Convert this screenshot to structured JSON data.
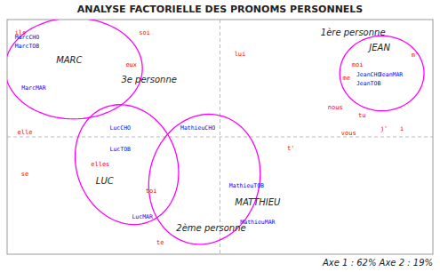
{
  "chart_data": {
    "type": "scatter",
    "title": "ANALYSE FACTORIELLE DES PRONOMS PERSONNELS",
    "xlabel": "Axe 1 : 62%    Axe 2 : 19%",
    "xlim": [
      -4.8,
      4.8
    ],
    "ylim": [
      -3.6,
      3.6
    ],
    "xticks": [
      0
    ],
    "yticks": [
      0
    ],
    "grid": true,
    "tick_labels": false,
    "series": [
      {
        "color": "red",
        "marker": "text",
        "labels": [
          "ils",
          "soi",
          "eux",
          "lui",
          "elle",
          "se",
          "elles",
          "toi",
          "te",
          "moi",
          "m'",
          "me",
          "tu",
          "nous",
          "vous",
          "t'",
          "j'",
          "i"
        ],
        "x": [
          -4.5,
          -1.7,
          -2.0,
          0.45,
          -4.4,
          -4.4,
          -2.7,
          -1.55,
          -1.35,
          3.1,
          4.4,
          2.85,
          3.2,
          2.6,
          2.9,
          1.6,
          3.7,
          4.1
        ],
        "values": [
          3.2,
          3.2,
          2.2,
          2.55,
          0.15,
          -1.15,
          -0.85,
          -1.65,
          -3.25,
          2.2,
          2.5,
          1.8,
          0.65,
          0.9,
          0.1,
          -0.35,
          0.25,
          0.25
        ]
      },
      {
        "color": "blue",
        "marker": "text",
        "labels": [
          "MarcCHO",
          "MarcTOB",
          "MarcMAR",
          "LucCHO",
          "LucTOB",
          "LucMAR",
          "MathieuCHO",
          "MathieuTOB",
          "MathieuMAR",
          "JeanCHO",
          "JeanMAR",
          "JeanTOB"
        ],
        "x": [
          -4.35,
          -4.35,
          -4.2,
          -2.25,
          -2.25,
          -1.75,
          -0.5,
          0.6,
          0.85,
          3.35,
          3.85,
          3.35
        ],
        "values": [
          3.05,
          2.78,
          1.5,
          0.28,
          -0.38,
          -2.45,
          0.28,
          -1.5,
          -2.62,
          1.9,
          1.9,
          1.65
        ]
      }
    ],
    "annotations": [
      {
        "text": "MARC",
        "x": -3.4,
        "y": 2.35
      },
      {
        "text": "3e personne",
        "x": -1.6,
        "y": 1.75
      },
      {
        "text": "LUC",
        "x": -2.6,
        "y": -1.35
      },
      {
        "text": "MATTHIEU",
        "x": 0.85,
        "y": -2.0
      },
      {
        "text": "JEAN",
        "x": 3.6,
        "y": 2.75
      },
      {
        "text": "1ère personne",
        "x": 3.0,
        "y": 3.2
      },
      {
        "text": "2ème personne",
        "x": -0.2,
        "y": -2.8
      }
    ],
    "ellipses": [
      {
        "cx": -3.3,
        "cy": 2.1,
        "rx": 1.55,
        "ry": 1.55,
        "angle": 0
      },
      {
        "cx": -2.1,
        "cy": -0.85,
        "rx": 1.15,
        "ry": 1.85,
        "angle": 8
      },
      {
        "cx": -0.35,
        "cy": -1.3,
        "rx": 1.25,
        "ry": 2.0,
        "angle": -5
      },
      {
        "cx": 3.65,
        "cy": 1.95,
        "rx": 0.95,
        "ry": 1.15,
        "angle": 0
      }
    ],
    "ellipse_color": "magenta"
  }
}
